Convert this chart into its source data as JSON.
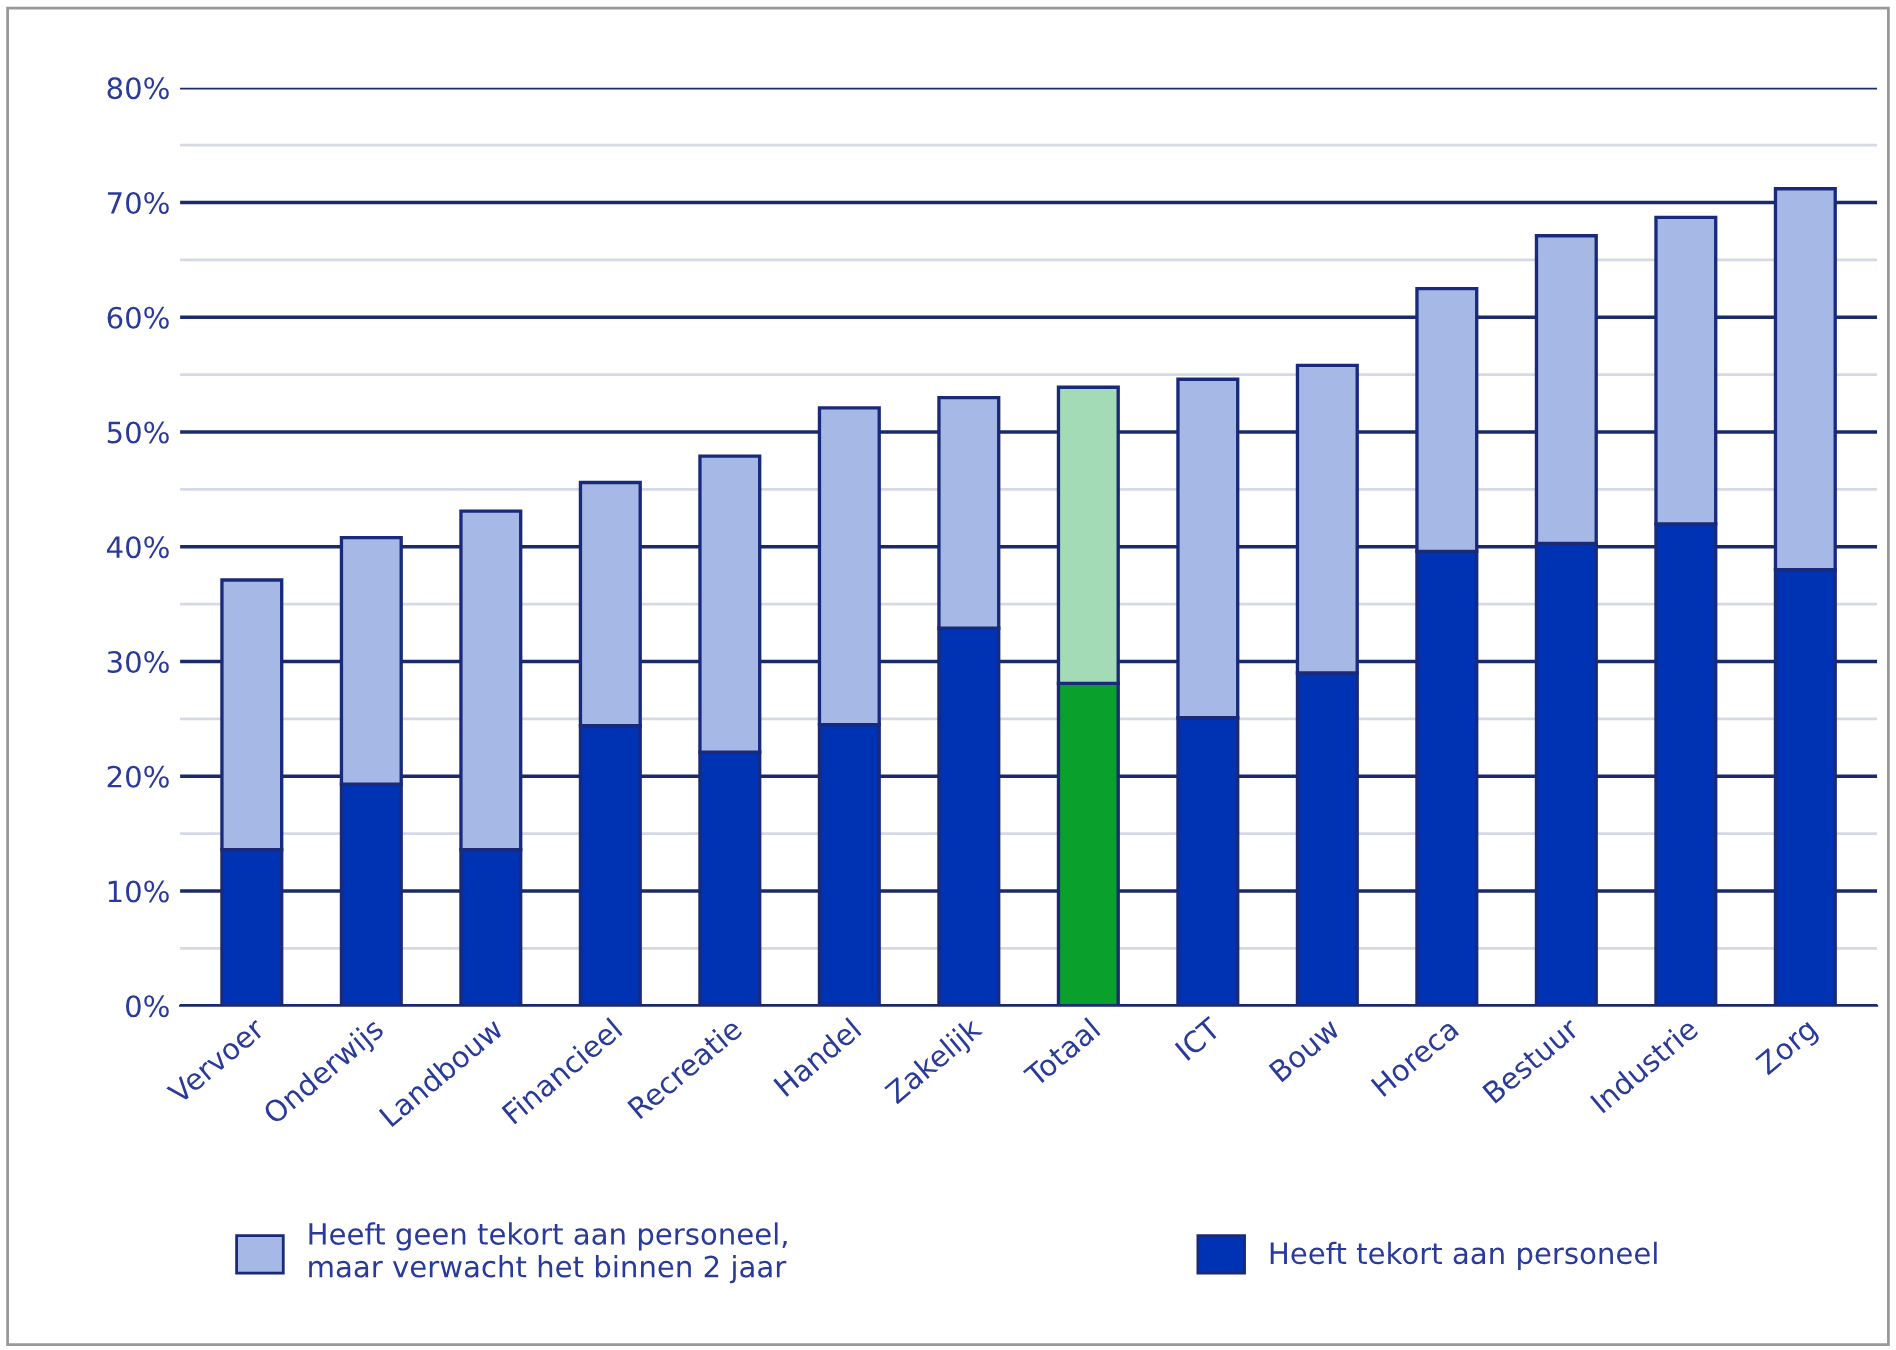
{
  "chart_data": {
    "type": "bar",
    "stacked": true,
    "categories": [
      "Vervoer",
      "Onderwijs",
      "Landbouw",
      "Financieel",
      "Recreatie",
      "Handel",
      "Zakelijk",
      "Totaal",
      "ICT",
      "Bouw",
      "Horeca",
      "Bestuur",
      "Industrie",
      "Zorg"
    ],
    "series": [
      {
        "name": "Heeft tekort aan personeel",
        "color": "#0033b3",
        "colors": [
          "#0033b3",
          "#0033b3",
          "#0033b3",
          "#0033b3",
          "#0033b3",
          "#0033b3",
          "#0033b3",
          "#0aa02c",
          "#0033b3",
          "#0033b3",
          "#0033b3",
          "#0033b3",
          "#0033b3",
          "#0033b3"
        ],
        "values": [
          13.6,
          19.3,
          13.6,
          24.4,
          22.1,
          24.5,
          32.9,
          28.1,
          25.1,
          29.0,
          39.6,
          40.3,
          42.0,
          38.0
        ]
      },
      {
        "name": "Heeft geen tekort aan personeel,\nmaar verwacht het binnen 2 jaar",
        "color": "#a6b9e6",
        "colors": [
          "#a6b9e6",
          "#a6b9e6",
          "#a6b9e6",
          "#a6b9e6",
          "#a6b9e6",
          "#a6b9e6",
          "#a6b9e6",
          "#a3dbb6",
          "#a6b9e6",
          "#a6b9e6",
          "#a6b9e6",
          "#a6b9e6",
          "#a6b9e6",
          "#a6b9e6"
        ],
        "values": [
          23.5,
          21.5,
          29.5,
          21.2,
          25.8,
          27.6,
          20.1,
          25.8,
          29.5,
          26.8,
          22.9,
          26.8,
          26.7,
          33.2
        ]
      }
    ],
    "ylim": [
      0,
      80
    ],
    "yticks": [
      {
        "value": 0,
        "label": "0%"
      },
      {
        "value": 5,
        "label": null
      },
      {
        "value": 10,
        "label": "10%"
      },
      {
        "value": 15,
        "label": null
      },
      {
        "value": 20,
        "label": "20%"
      },
      {
        "value": 25,
        "label": null
      },
      {
        "value": 30,
        "label": "30%"
      },
      {
        "value": 35,
        "label": null
      },
      {
        "value": 40,
        "label": "40%"
      },
      {
        "value": 45,
        "label": null
      },
      {
        "value": 50,
        "label": "50%"
      },
      {
        "value": 55,
        "label": null
      },
      {
        "value": 60,
        "label": "60%"
      },
      {
        "value": 65,
        "label": null
      },
      {
        "value": 70,
        "label": "70%"
      },
      {
        "value": 75,
        "label": null
      },
      {
        "value": 80,
        "label": "80%"
      }
    ],
    "grid": "y",
    "legend": "bottom"
  }
}
